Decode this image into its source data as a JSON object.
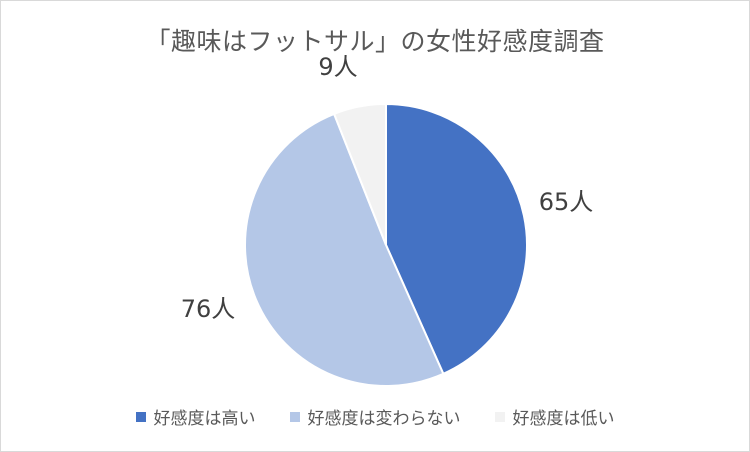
{
  "chart_data": {
    "type": "pie",
    "title": "「趣味はフットサル」の女性好感度調査",
    "categories": [
      "好感度は高い",
      "好感度は変わらない",
      "好感度は低い"
    ],
    "values": [
      65,
      76,
      9
    ],
    "unit": "人",
    "data_labels": [
      "65人",
      "76人",
      "9人"
    ],
    "colors": [
      "#4472c4",
      "#b4c7e7",
      "#f2f2f2"
    ],
    "start": "12 o'clock",
    "direction": "clockwise",
    "legend_position": "bottom"
  }
}
